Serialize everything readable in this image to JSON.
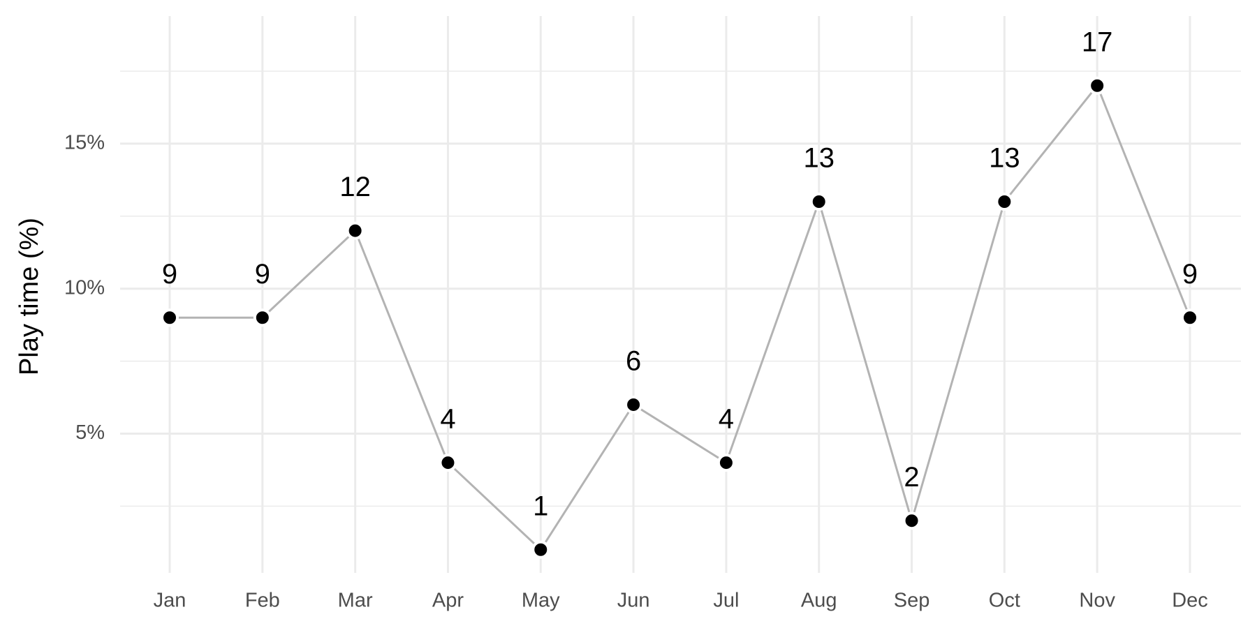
{
  "chart_data": {
    "type": "line",
    "y_label": "Play time (%)",
    "categories": [
      "Jan",
      "Feb",
      "Mar",
      "Apr",
      "May",
      "Jun",
      "Jul",
      "Aug",
      "Sep",
      "Oct",
      "Nov",
      "Dec"
    ],
    "values": [
      9,
      9,
      12,
      4,
      1,
      6,
      4,
      13,
      2,
      13,
      17,
      9
    ],
    "color": "#000000",
    "line_color": "#b3b3b3",
    "ylim": [
      0.2,
      19.4
    ],
    "yticks": [
      {
        "value": 5,
        "label": "5%"
      },
      {
        "value": 10,
        "label": "10%"
      },
      {
        "value": 15,
        "label": "15%"
      }
    ],
    "minor_yticks": [
      2.5,
      7.5,
      12.5,
      17.5
    ],
    "grid": true
  }
}
